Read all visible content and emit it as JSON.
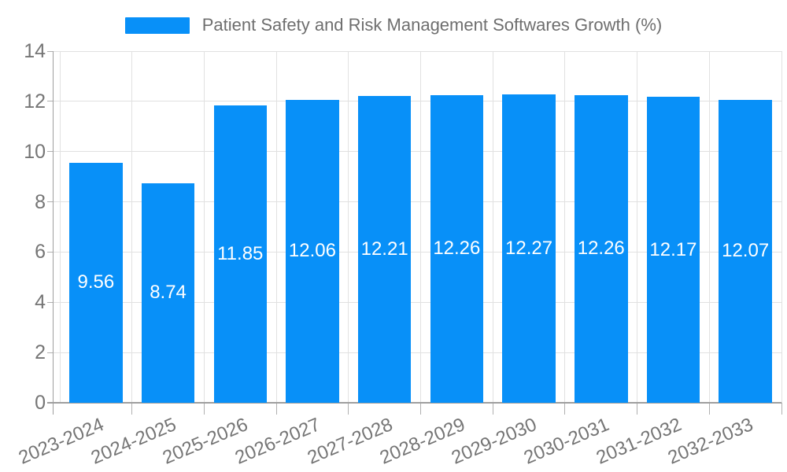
{
  "legend": {
    "label": "Patient Safety and Risk Management Softwares Growth (%)"
  },
  "chart_data": {
    "type": "bar",
    "title": "Patient Safety and Risk Management Softwares Growth (%)",
    "categories": [
      "2023-2024",
      "2024-2025",
      "2025-2026",
      "2026-2027",
      "2027-2028",
      "2028-2029",
      "2029-2030",
      "2030-2031",
      "2031-2032",
      "2032-2033"
    ],
    "values": [
      9.56,
      8.74,
      11.85,
      12.06,
      12.21,
      12.26,
      12.27,
      12.26,
      12.17,
      12.07
    ],
    "series": [
      {
        "name": "Patient Safety and Risk Management Softwares Growth (%)",
        "values": [
          9.56,
          8.74,
          11.85,
          12.06,
          12.21,
          12.26,
          12.27,
          12.26,
          12.17,
          12.07
        ]
      }
    ],
    "xlabel": "",
    "ylabel": "",
    "ylim": [
      0,
      14
    ],
    "yticks": [
      0,
      2,
      4,
      6,
      8,
      10,
      12,
      14
    ],
    "grid": true,
    "legend_position": "top-center",
    "value_label_position": "inside-center",
    "value_label_format": "2-decimals",
    "colors": {
      "bar": "#0890F8",
      "value_label": "#FFFFFF",
      "grid_line": "#E1E1E1",
      "axis_line": "#9E9E9E",
      "tick_line": "#B0B0B0",
      "axis_text": "#757575",
      "legend_text": "#6E6E6E",
      "background": "#FFFFFF"
    }
  }
}
